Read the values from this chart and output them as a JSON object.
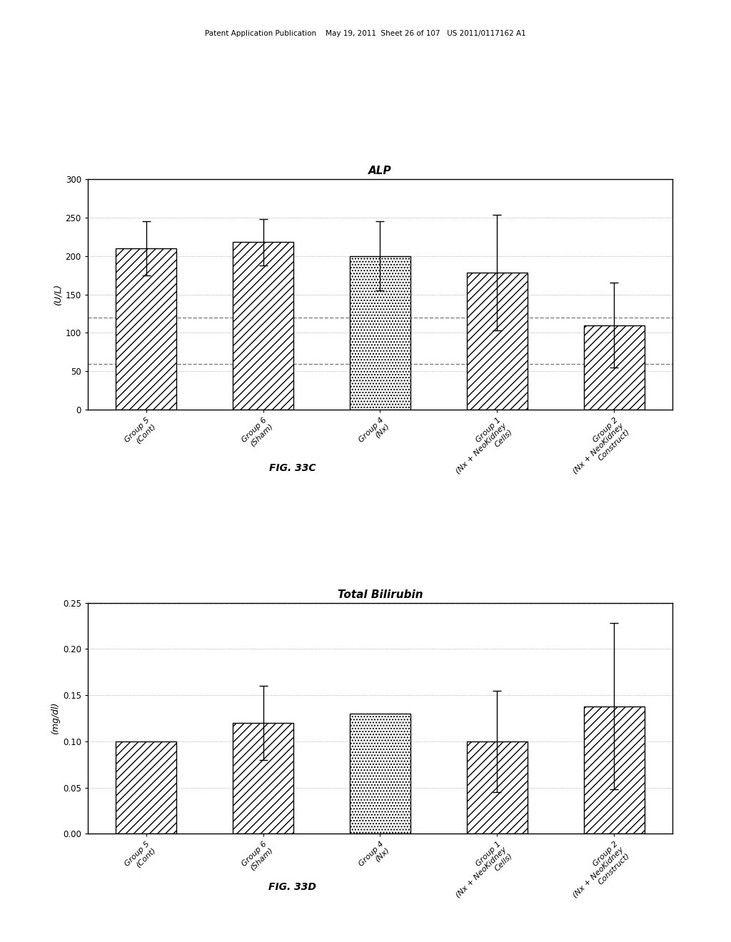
{
  "chart1": {
    "title": "ALP",
    "ylabel": "(U/L)",
    "categories": [
      "Group 5\n(Cont)",
      "Group 6\n(Sham)",
      "Group 4\n(Nx)",
      "Group 1\n(Nx + NeoKidney\nCells)",
      "Group 2\n(Nx + NeoKidney\nConstruct)"
    ],
    "values": [
      210,
      218,
      200,
      178,
      110
    ],
    "errors": [
      35,
      30,
      45,
      75,
      55
    ],
    "dashed_lines": [
      120,
      60
    ],
    "ylim": [
      0,
      300
    ],
    "yticks": [
      0,
      50,
      100,
      150,
      200,
      250,
      300
    ],
    "bar_patterns_hatch": [
      "///",
      "///",
      "....",
      "///",
      "///"
    ],
    "figcaption": "FIG. 33C"
  },
  "chart2": {
    "title": "Total Bilirubin",
    "ylabel": "(mg/dl)",
    "categories": [
      "Group 5\n(Cont)",
      "Group 6\n(Sham)",
      "Group 4\n(Nx)",
      "Group 1\n(Nx + NeoKidney\nCells)",
      "Group 2\n(Nx + NeoKidney\nConstruct)"
    ],
    "values": [
      0.1,
      0.12,
      0.13,
      0.1,
      0.138
    ],
    "errors": [
      0.0,
      0.04,
      0.0,
      0.055,
      0.09
    ],
    "dashed_lines": [
      0.25
    ],
    "ylim": [
      0,
      0.25
    ],
    "yticks": [
      0,
      0.05,
      0.1,
      0.15,
      0.2,
      0.25
    ],
    "bar_patterns_hatch": [
      "///",
      "///",
      "....",
      "///",
      "///"
    ],
    "figcaption": "FIG. 33D"
  },
  "page_header": "Patent Application Publication    May 19, 2011  Sheet 26 of 107   US 2011/0117162 A1",
  "background_color": "#ffffff"
}
